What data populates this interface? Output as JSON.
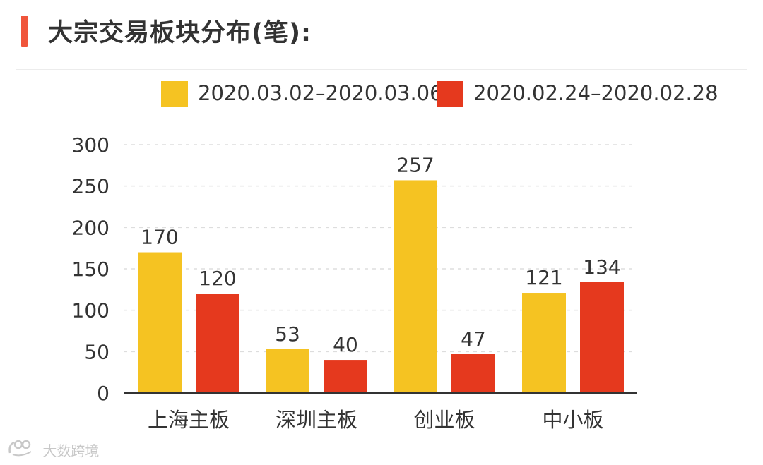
{
  "header": {
    "title": "大宗交易板块分布(笔):"
  },
  "watermark": {
    "text": "大数跨境"
  },
  "colors": {
    "accent": "#f0553b",
    "series_a": "#f5c322",
    "series_b": "#e5391e",
    "grid": "#dddddd",
    "axis": "#333333",
    "text": "#333333"
  },
  "chart_data": {
    "type": "bar",
    "title": "大宗交易板块分布(笔):",
    "categories": [
      "上海主板",
      "深圳主板",
      "创业板",
      "中小板"
    ],
    "series": [
      {
        "name": "2020.03.02–2020.03.06",
        "color": "#f5c322",
        "values": [
          170,
          53,
          257,
          121
        ]
      },
      {
        "name": "2020.02.24–2020.02.28",
        "color": "#e5391e",
        "values": [
          120,
          40,
          47,
          134
        ]
      }
    ],
    "ylim": [
      0,
      300
    ],
    "yticks": [
      0,
      50,
      100,
      150,
      200,
      250,
      300
    ],
    "grid": true,
    "legend": "top",
    "xlabel": "",
    "ylabel": ""
  }
}
